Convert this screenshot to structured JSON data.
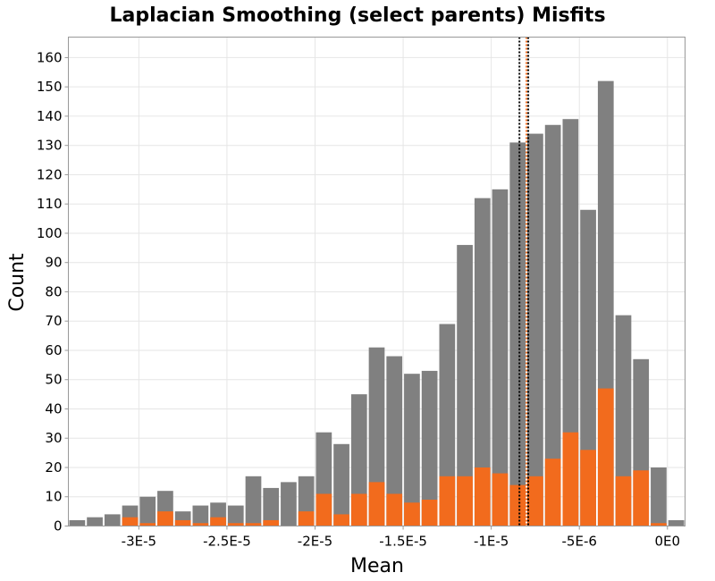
{
  "chart_data": {
    "type": "bar",
    "title": "Laplacian Smoothing (select parents) Misfits",
    "xlabel": "Mean",
    "ylabel": "Count",
    "xlim": [
      -3.4e-05,
      1e-06
    ],
    "ylim": [
      0,
      167
    ],
    "grid": true,
    "bin_width": 1e-06,
    "x_ticks": [
      {
        "value": -3e-05,
        "label": "-3E-5"
      },
      {
        "value": -2.5e-05,
        "label": "-2.5E-5"
      },
      {
        "value": -2e-05,
        "label": "-2E-5"
      },
      {
        "value": -1.5e-05,
        "label": "-1.5E-5"
      },
      {
        "value": -1e-05,
        "label": "-1E-5"
      },
      {
        "value": -5e-06,
        "label": "-5E-6"
      },
      {
        "value": 0,
        "label": "0E0"
      }
    ],
    "y_ticks": [
      0,
      10,
      20,
      30,
      40,
      50,
      60,
      70,
      80,
      90,
      100,
      110,
      120,
      130,
      140,
      150,
      160
    ],
    "bin_centers": [
      -3.35e-05,
      -3.25e-05,
      -3.15e-05,
      -3.05e-05,
      -2.95e-05,
      -2.85e-05,
      -2.75e-05,
      -2.65e-05,
      -2.55e-05,
      -2.45e-05,
      -2.35e-05,
      -2.25e-05,
      -2.15e-05,
      -2.05e-05,
      -1.95e-05,
      -1.85e-05,
      -1.75e-05,
      -1.65e-05,
      -1.55e-05,
      -1.45e-05,
      -1.35e-05,
      -1.25e-05,
      -1.15e-05,
      -1.05e-05,
      -9.5e-06,
      -8.5e-06,
      -7.5e-06,
      -6.5e-06,
      -5.5e-06,
      -4.5e-06,
      -3.5e-06,
      -2.5e-06,
      -1.5e-06,
      -5e-07,
      5e-07
    ],
    "series": [
      {
        "color": "#808080",
        "values": [
          2,
          3,
          4,
          7,
          10,
          12,
          5,
          7,
          8,
          7,
          17,
          13,
          15,
          17,
          32,
          28,
          45,
          61,
          58,
          52,
          53,
          69,
          96,
          112,
          115,
          131,
          134,
          137,
          139,
          108,
          152,
          72,
          57,
          20,
          2
        ]
      },
      {
        "color": "#f26b1d",
        "values": [
          0,
          0,
          0,
          3,
          1,
          5,
          2,
          1,
          3,
          1,
          1,
          2,
          0,
          5,
          11,
          4,
          11,
          15,
          11,
          8,
          9,
          17,
          17,
          20,
          18,
          14,
          17,
          23,
          32,
          26,
          47,
          17,
          19,
          1,
          0
        ]
      }
    ],
    "reference_lines": [
      {
        "x": -8.4e-06,
        "color": "#000000",
        "style": "dotted"
      },
      {
        "x": -8e-06,
        "color": "#f26b1d",
        "style": "dotted"
      },
      {
        "x": -7.9e-06,
        "color": "#000000",
        "style": "dotted"
      }
    ]
  }
}
